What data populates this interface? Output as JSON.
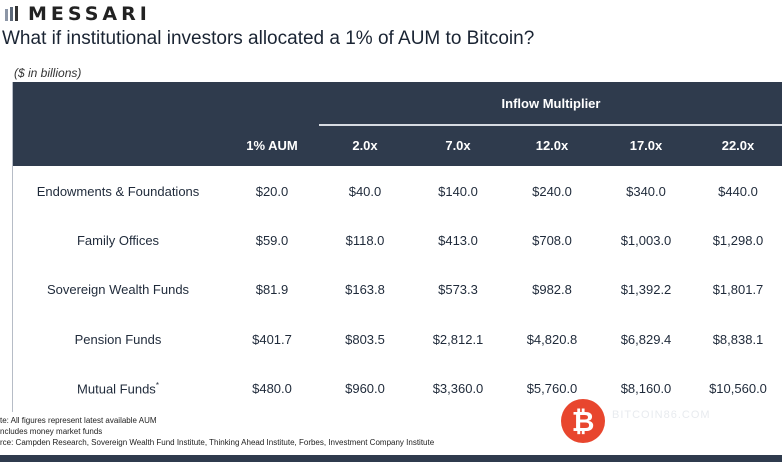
{
  "brand": {
    "name": "MESSARI"
  },
  "title": "What if institutional investors allocated a 1% of AUM to Bitcoin?",
  "unit_note": "($ in billions)",
  "table": {
    "group_header": "Inflow Multiplier",
    "columns": [
      "1% AUM",
      "2.0x",
      "7.0x",
      "12.0x",
      "17.0x",
      "22.0x"
    ],
    "rows": [
      {
        "label": "Endowments & Foundations",
        "values": [
          "$20.0",
          "$40.0",
          "$140.0",
          "$240.0",
          "$340.0",
          "$440.0"
        ]
      },
      {
        "label": "Family Offices",
        "values": [
          "$59.0",
          "$118.0",
          "$413.0",
          "$708.0",
          "$1,003.0",
          "$1,298.0"
        ]
      },
      {
        "label": "Sovereign Wealth Funds",
        "values": [
          "$81.9",
          "$163.8",
          "$573.3",
          "$982.8",
          "$1,392.2",
          "$1,801.7"
        ]
      },
      {
        "label": "Pension Funds",
        "values": [
          "$401.7",
          "$803.5",
          "$2,812.1",
          "$4,820.8",
          "$6,829.4",
          "$8,838.1"
        ]
      },
      {
        "label": "Mutual Funds",
        "label_sup": "*",
        "values": [
          "$480.0",
          "$960.0",
          "$3,360.0",
          "$5,760.0",
          "$8,160.0",
          "$10,560.0"
        ]
      }
    ]
  },
  "notes": [
    "te: All figures represent latest available AUM",
    "ncludes money market funds",
    "rce: Campden Research, Sovereign Wealth Fund Institute, Thinking Ahead Institute, Forbes, Investment Company Institute"
  ],
  "watermark": {
    "icon": "bitcoin-logo-icon",
    "text": "BITCOIN86.COM",
    "color": "#e8462e"
  },
  "colors": {
    "header_bg": "#2f3b4d",
    "header_text": "#ffffff"
  }
}
